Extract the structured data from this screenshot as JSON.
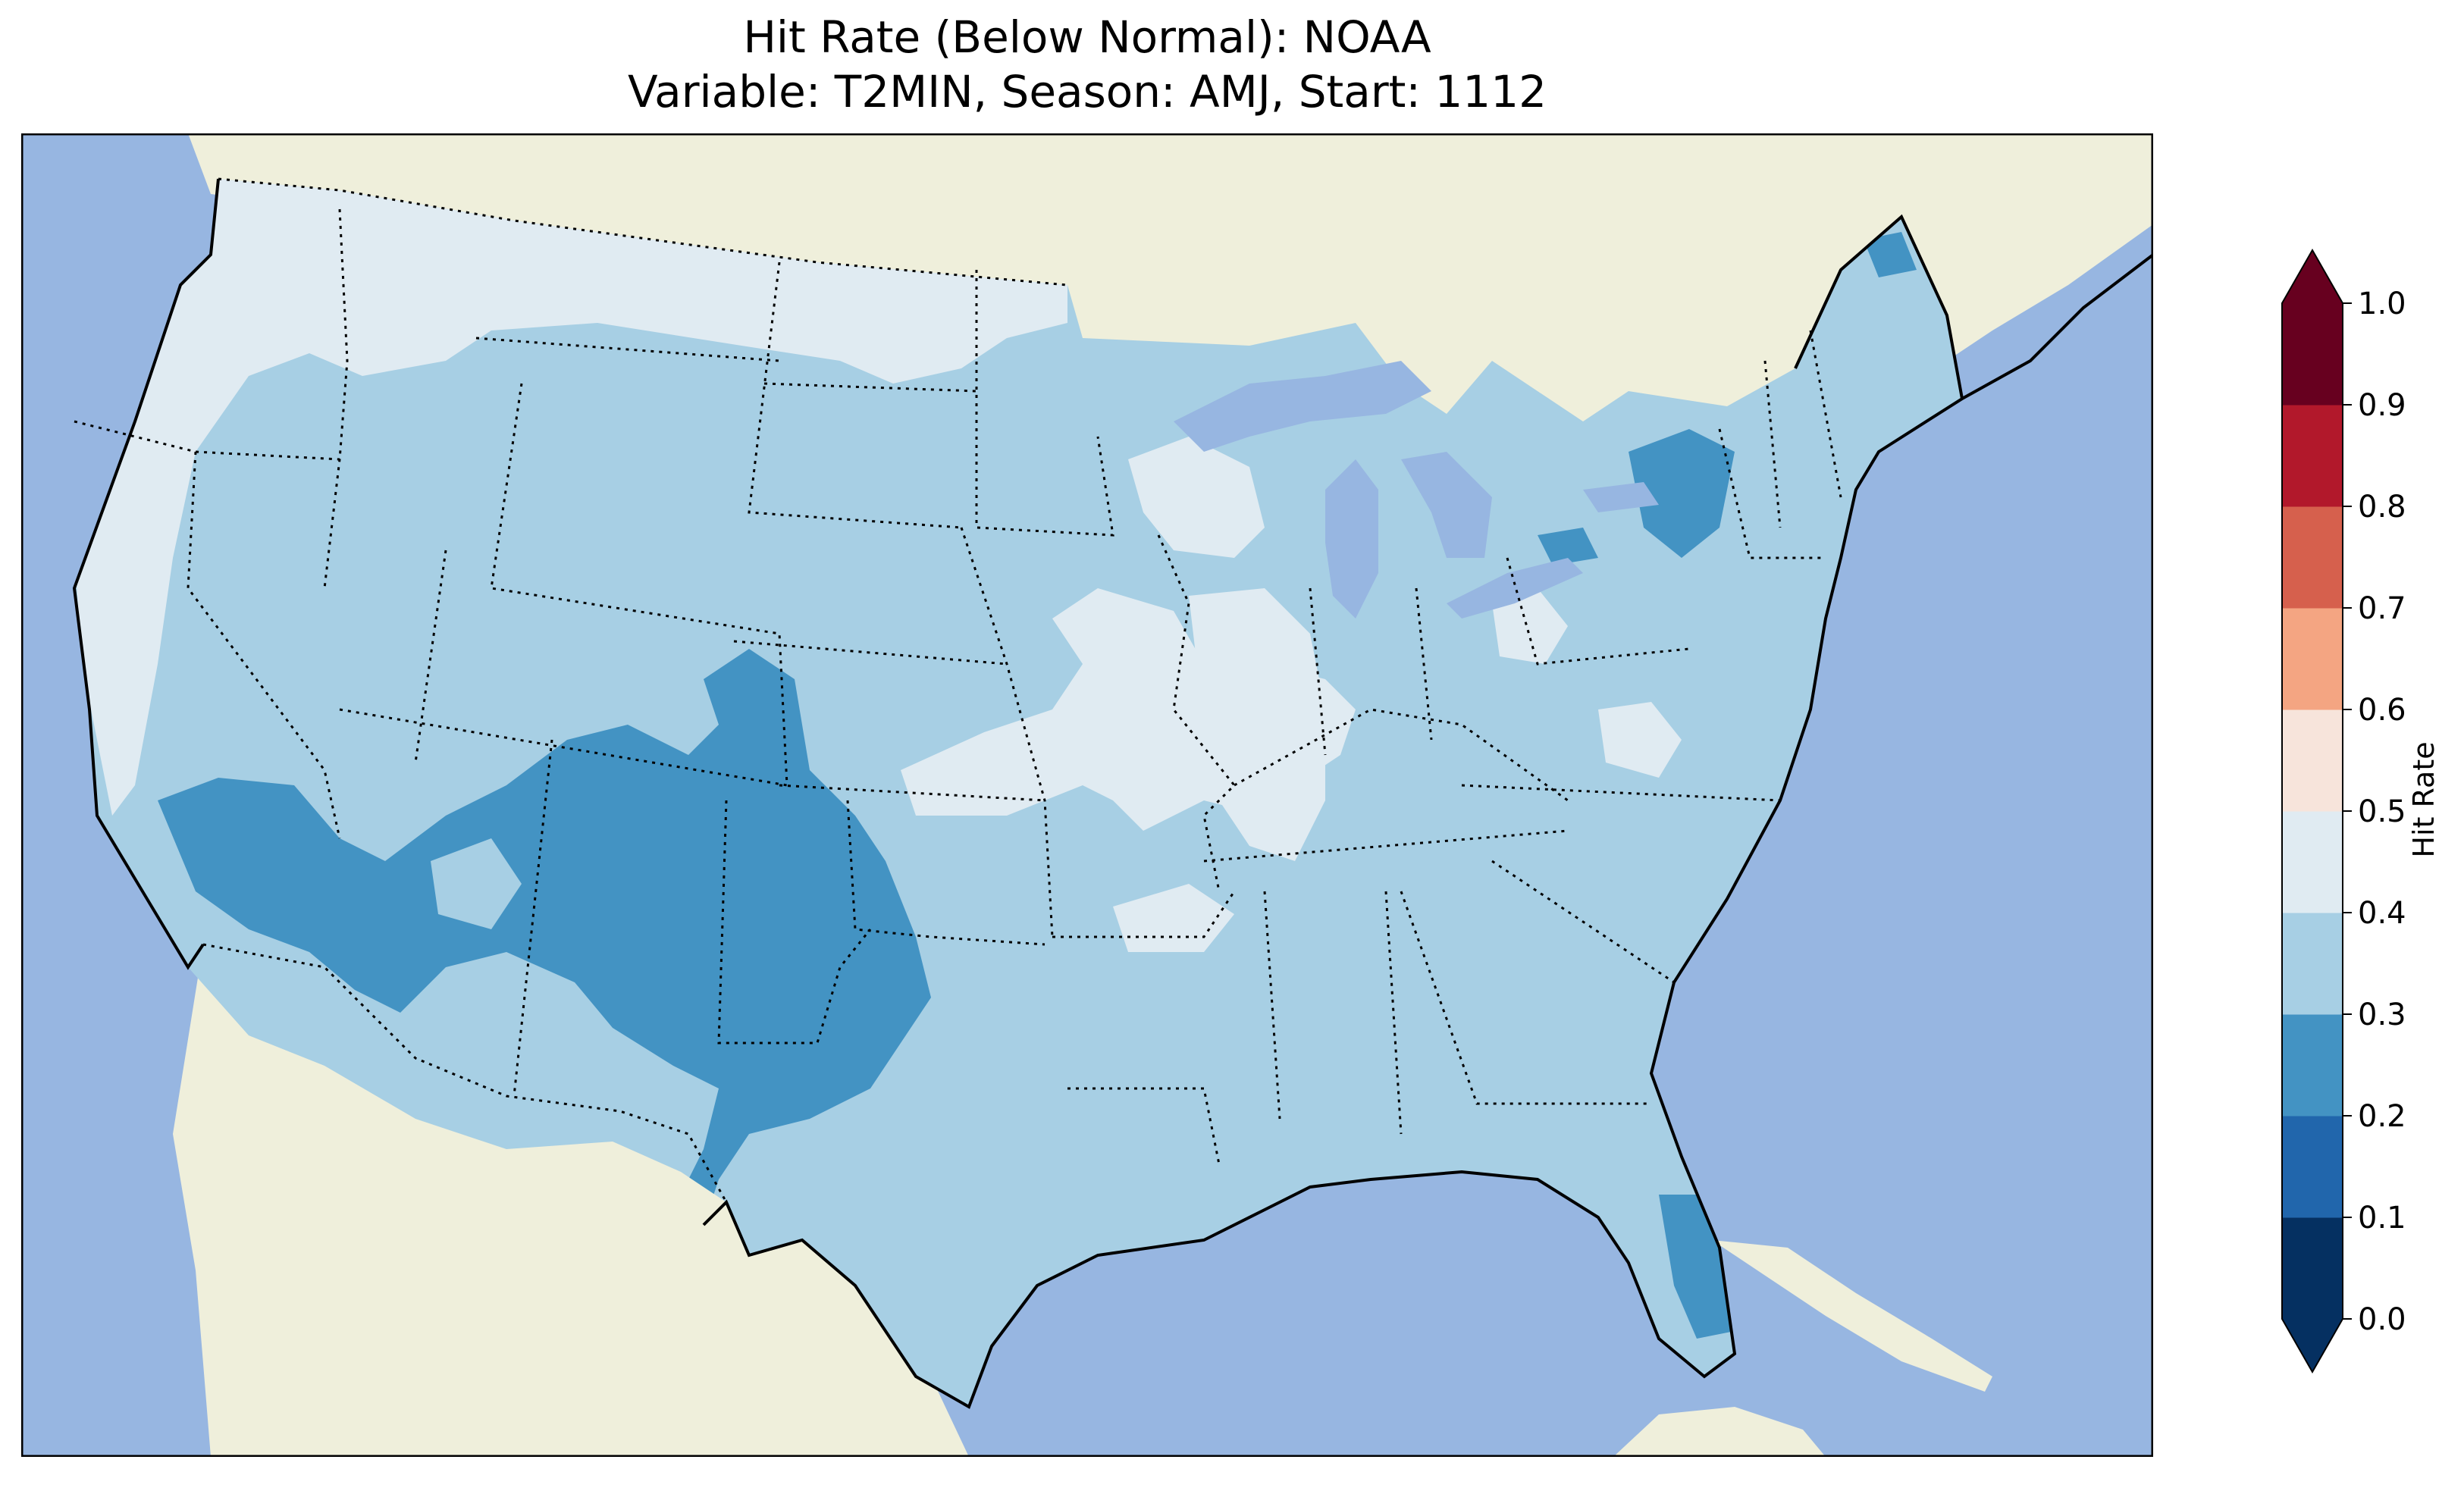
{
  "title": {
    "line1": "Hit Rate (Below Normal): NOAA",
    "line2": "Variable: T2MIN, Season: AMJ, Start: 1112"
  },
  "map": {
    "projection": "lambert-conformal",
    "region": "Contiguous United States",
    "colors": {
      "ocean": "#97b6e1",
      "land": "#efefdb",
      "coast": "#000000"
    }
  },
  "colorbar": {
    "label": "Hit Rate",
    "ticks": [
      "0.0",
      "0.1",
      "0.2",
      "0.3",
      "0.4",
      "0.5",
      "0.6",
      "0.7",
      "0.8",
      "0.9",
      "1.0"
    ],
    "bins": [
      {
        "range": [
          0.0,
          0.1
        ],
        "color": "#053061"
      },
      {
        "range": [
          0.1,
          0.2
        ],
        "color": "#2166ac"
      },
      {
        "range": [
          0.2,
          0.3
        ],
        "color": "#4393c3"
      },
      {
        "range": [
          0.3,
          0.4
        ],
        "color": "#a7cfe4"
      },
      {
        "range": [
          0.4,
          0.5
        ],
        "color": "#e0ebf2"
      },
      {
        "range": [
          0.5,
          0.6
        ],
        "color": "#f7e4db"
      },
      {
        "range": [
          0.6,
          0.7
        ],
        "color": "#f4a582"
      },
      {
        "range": [
          0.7,
          0.8
        ],
        "color": "#d6604d"
      },
      {
        "range": [
          0.8,
          0.9
        ],
        "color": "#b2182b"
      },
      {
        "range": [
          0.9,
          1.0
        ],
        "color": "#67001f"
      }
    ],
    "extend": "both"
  },
  "chart_data": {
    "type": "heatmap",
    "title": "Hit Rate (Below Normal): NOAA",
    "subtitle": "Variable: T2MIN, Season: AMJ, Start: 1112",
    "colorbar_label": "Hit Rate",
    "vmin": 0.0,
    "vmax": 1.0,
    "levels": [
      0.0,
      0.1,
      0.2,
      0.3,
      0.4,
      0.5,
      0.6,
      0.7,
      0.8,
      0.9,
      1.0
    ],
    "regions": [
      {
        "area": "Pacific Northwest, Northern Rockies, Northern Plains",
        "value_range": [
          0.4,
          0.5
        ]
      },
      {
        "area": "California coast and Great Basin",
        "value_range": [
          0.4,
          0.5
        ]
      },
      {
        "area": "Upper Midwest and Great Lakes",
        "value_range": [
          0.3,
          0.4
        ]
      },
      {
        "area": "Central Plains, Kansas / Missouri / Iowa / Illinois",
        "value_range": [
          0.4,
          0.5
        ]
      },
      {
        "area": "Southwest: Southern California, Arizona, Nevada",
        "value_range": [
          0.2,
          0.3
        ]
      },
      {
        "area": "New Mexico, West Texas, Colorado",
        "value_range": [
          0.2,
          0.3
        ]
      },
      {
        "area": "Southeast and Gulf Coast",
        "value_range": [
          0.3,
          0.4
        ]
      },
      {
        "area": "Northeast and New England",
        "value_range": [
          0.3,
          0.4
        ]
      },
      {
        "area": "Upstate New York",
        "value_range": [
          0.2,
          0.3
        ]
      },
      {
        "area": "Central Florida",
        "value_range": [
          0.2,
          0.3
        ]
      }
    ]
  }
}
